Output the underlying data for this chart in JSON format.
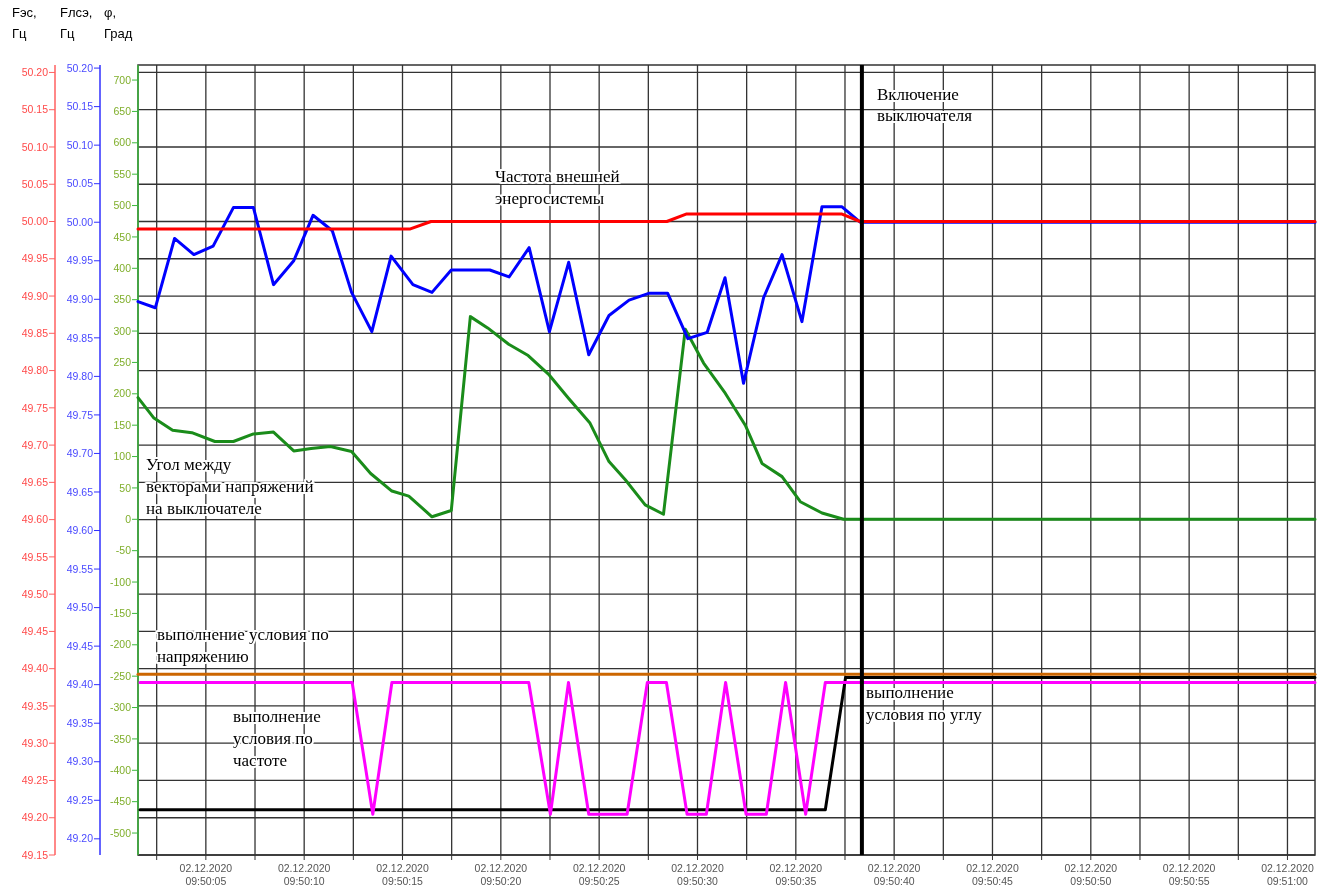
{
  "chart_data": {
    "type": "line",
    "ylabel": "Fэс, Гц",
    "y2label": "Fлсэ, Гц",
    "y3label": "φ, Град",
    "xlim": [
      "2020-12-02T09:50:01.55",
      "2020-12-02T09:51:01.4"
    ],
    "xticks": [
      {
        "value": "2020-12-02T09:50:02.5",
        "label": null
      },
      {
        "value": "2020-12-02T09:50:05",
        "label": "02.12.2020 09:50:05"
      },
      {
        "value": "2020-12-02T09:50:07.5",
        "label": null
      },
      {
        "value": "2020-12-02T09:50:10",
        "label": "02.12.2020 09:50:10"
      },
      {
        "value": "2020-12-02T09:50:12.5",
        "label": null
      },
      {
        "value": "2020-12-02T09:50:15",
        "label": "02.12.2020 09:50:15"
      },
      {
        "value": "2020-12-02T09:50:17.5",
        "label": null
      },
      {
        "value": "2020-12-02T09:50:20",
        "label": "02.12.2020 09:50:20"
      },
      {
        "value": "2020-12-02T09:50:22.5",
        "label": null
      },
      {
        "value": "2020-12-02T09:50:25",
        "label": "02.12.2020 09:50:25"
      },
      {
        "value": "2020-12-02T09:50:27.5",
        "label": null
      },
      {
        "value": "2020-12-02T09:50:30",
        "label": "02.12.2020 09:50:30"
      },
      {
        "value": "2020-12-02T09:50:32.5",
        "label": null
      },
      {
        "value": "2020-12-02T09:50:35",
        "label": "02.12.2020 09:50:35"
      },
      {
        "value": "2020-12-02T09:50:37.5",
        "label": null
      },
      {
        "value": "2020-12-02T09:50:40",
        "label": "02.12.2020 09:50:40"
      },
      {
        "value": "2020-12-02T09:50:42.5",
        "label": null
      },
      {
        "value": "2020-12-02T09:50:45",
        "label": "02.12.2020 09:50:45"
      },
      {
        "value": "2020-12-02T09:50:47.5",
        "label": null
      },
      {
        "value": "2020-12-02T09:50:50",
        "label": "02.12.2020 09:50:50"
      },
      {
        "value": "2020-12-02T09:50:52.5",
        "label": null
      },
      {
        "value": "2020-12-02T09:50:55",
        "label": "02.12.2020 09:50:55"
      },
      {
        "value": "2020-12-02T09:50:57.5",
        "label": null
      },
      {
        "value": "2020-12-02T09:51:00",
        "label": "02.12.2020 09:51:00"
      }
    ],
    "ylim": [
      49.15,
      50.21
    ],
    "yticks": [
      49.15,
      {
        "value": 49.2,
        "label": "49.20"
      },
      49.25,
      {
        "value": 49.3,
        "label": "49.30"
      },
      49.35,
      {
        "value": 49.4,
        "label": "49.40"
      },
      49.45,
      {
        "value": 49.5,
        "label": "49.50"
      },
      49.55,
      {
        "value": 49.6,
        "label": "49.60"
      },
      49.65,
      {
        "value": 49.7,
        "label": "49.70"
      },
      49.75,
      {
        "value": 49.8,
        "label": "49.80"
      },
      49.85,
      {
        "value": 49.9,
        "label": "49.90"
      },
      49.95,
      {
        "value": 50,
        "label": "50.00"
      },
      50.05,
      {
        "value": 50.1,
        "label": "50.10"
      },
      50.15,
      {
        "value": 50.2,
        "label": "50.20"
      }
    ],
    "y2lim": [
      49.179,
      50.204
    ],
    "y2ticks": [
      {
        "value": 49.2,
        "label": "49.20"
      },
      49.25,
      {
        "value": 49.3,
        "label": "49.30"
      },
      49.35,
      {
        "value": 49.4,
        "label": "49.40"
      },
      49.45,
      {
        "value": 49.5,
        "label": "49.50"
      },
      49.55,
      {
        "value": 49.6,
        "label": "49.60"
      },
      49.65,
      {
        "value": 49.7,
        "label": "49.70"
      },
      49.75,
      {
        "value": 49.8,
        "label": "49.80"
      },
      49.85,
      {
        "value": 49.9,
        "label": "49.90"
      },
      49.95,
      {
        "value": 50,
        "label": "50.00"
      },
      50.05,
      {
        "value": 50.1,
        "label": "50.10"
      },
      50.15,
      {
        "value": 50.2,
        "label": "50.20"
      }
    ],
    "y3lim": [
      -535,
      724
    ],
    "y3ticks": [
      -500,
      -450,
      -400,
      -350,
      -300,
      -250,
      -200,
      -150,
      -100,
      -50,
      0,
      50,
      100,
      150,
      200,
      250,
      300,
      350,
      400,
      450,
      500,
      550,
      600,
      650,
      700
    ],
    "grid": true,
    "line_style": "solid",
    "marker": "none",
    "ref_lines": [
      {
        "axis": "x",
        "value": "2020-12-02T09:50:38.36",
        "label": "Включение выключателя",
        "color": "#000000"
      }
    ],
    "series": [
      {
        "name": "выполнение условия по напряжению",
        "color": "#cc6600",
        "axis": "y3",
        "x": [
          "2020-12-02T09:50:01.55",
          "2020-12-02T09:51:01.4"
        ],
        "values": [
          -247,
          -247
        ]
      },
      {
        "name": "выполнение условия по углу",
        "color": "#000000",
        "axis": "y3",
        "x": [
          "2020-12-02T09:50:01.65",
          "2020-12-02T09:50:36.5",
          "2020-12-02T09:50:37.53",
          "2020-12-02T09:51:01.4"
        ],
        "values": [
          -463,
          -463,
          -252,
          -252
        ]
      },
      {
        "name": "выполнение условия по частоте",
        "color": "#ff00ff",
        "axis": "y3",
        "x": [
          "2020-12-02T09:50:01.65",
          "2020-12-02T09:50:12.44",
          "2020-12-02T09:50:13.49",
          "2020-12-02T09:50:14.46",
          "2020-12-02T09:50:21.42",
          "2020-12-02T09:50:22.52",
          "2020-12-02T09:50:23.44",
          "2020-12-02T09:50:24.47",
          "2020-12-02T09:50:26.42",
          "2020-12-02T09:50:27.45",
          "2020-12-02T09:50:28.42",
          "2020-12-02T09:50:29.47",
          "2020-12-02T09:50:30.45",
          "2020-12-02T09:50:31.43",
          "2020-12-02T09:50:32.47",
          "2020-12-02T09:50:33.5",
          "2020-12-02T09:50:34.48",
          "2020-12-02T09:50:35.5",
          "2020-12-02T09:50:36.5",
          "2020-12-02T09:51:01.4"
        ],
        "values": [
          -260,
          -260,
          -470,
          -260,
          -260,
          -470,
          -260,
          -470,
          -470,
          -260,
          -260,
          -470,
          -470,
          -260,
          -470,
          -470,
          -260,
          -470,
          -260,
          -260
        ]
      },
      {
        "name": "Угол между векторами напряжений на выключателе",
        "color": "#1a8c1a",
        "axis": "y3",
        "x": [
          "2020-12-02T09:50:01.55",
          "2020-12-02T09:50:02.34",
          "2020-12-02T09:50:03.31",
          "2020-12-02T09:50:04.29",
          "2020-12-02T09:50:05.46",
          "2020-12-02T09:50:06.4",
          "2020-12-02T09:50:07.42",
          "2020-12-02T09:50:08.44",
          "2020-12-02T09:50:09.47",
          "2020-12-02T09:50:10.35",
          "2020-12-02T09:50:11.33",
          "2020-12-02T09:50:12.41",
          "2020-12-02T09:50:13.38",
          "2020-12-02T09:50:14.46",
          "2020-12-02T09:50:15.32",
          "2020-12-02T09:50:16.5",
          "2020-12-02T09:50:17.48",
          "2020-12-02T09:50:18.45",
          "2020-12-02T09:50:19.33",
          "2020-12-02T09:50:20.4",
          "2020-12-02T09:50:21.39",
          "2020-12-02T09:50:22.46",
          "2020-12-02T09:50:23.44",
          "2020-12-02T09:50:24.52",
          "2020-12-02T09:50:25.5",
          "2020-12-02T09:50:26.33",
          "2020-12-02T09:50:27.34",
          "2020-12-02T09:50:28.27",
          "2020-12-02T09:50:29.38",
          "2020-12-02T09:50:30.31",
          "2020-12-02T09:50:31.41",
          "2020-12-02T09:50:32.43",
          "2020-12-02T09:50:33.28",
          "2020-12-02T09:50:34.3",
          "2020-12-02T09:50:35.23",
          "2020-12-02T09:50:36.33",
          "2020-12-02T09:50:37.43",
          "2020-12-02T09:51:01.4"
        ],
        "values": [
          194,
          162,
          142,
          138,
          124,
          124,
          136,
          139,
          109,
          113,
          116,
          108,
          73,
          45,
          37,
          4,
          14,
          323,
          305,
          279,
          261,
          230,
          193,
          154,
          92,
          63,
          23,
          8,
          303,
          249,
          201,
          150,
          89,
          68,
          28,
          10,
          0,
          0
        ]
      },
      {
        "color": "#0000ff",
        "axis": "y2",
        "x": [
          "2020-12-02T09:50:01.55",
          "2020-12-02T09:50:02.43",
          "2020-12-02T09:50:03.41",
          "2020-12-02T09:50:04.39",
          "2020-12-02T09:50:05.37",
          "2020-12-02T09:50:06.4",
          "2020-12-02T09:50:07.42",
          "2020-12-02T09:50:08.44",
          "2020-12-02T09:50:09.47",
          "2020-12-02T09:50:10.45",
          "2020-12-02T09:50:11.43",
          "2020-12-02T09:50:12.41",
          "2020-12-02T09:50:13.44",
          "2020-12-02T09:50:14.42",
          "2020-12-02T09:50:15.53",
          "2020-12-02T09:50:16.5",
          "2020-12-02T09:50:17.48",
          "2020-12-02T09:50:19.44",
          "2020-12-02T09:50:20.42",
          "2020-12-02T09:50:21.44",
          "2020-12-02T09:50:22.47",
          "2020-12-02T09:50:23.45",
          "2020-12-02T09:50:24.47",
          "2020-12-02T09:50:25.5",
          "2020-12-02T09:50:26.52",
          "2020-12-02T09:50:27.56",
          "2020-12-02T09:50:28.48",
          "2020-12-02T09:50:29.51",
          "2020-12-02T09:50:30.49",
          "2020-12-02T09:50:31.4",
          "2020-12-02T09:50:32.34",
          "2020-12-02T09:50:33.36",
          "2020-12-02T09:50:34.3",
          "2020-12-02T09:50:35.31",
          "2020-12-02T09:50:36.33",
          "2020-12-02T09:50:37.35",
          "2020-12-02T09:50:38.27",
          "2020-12-02T09:51:01.4"
        ],
        "values": [
          49.897,
          49.889,
          49.979,
          49.958,
          49.969,
          50.019,
          50.019,
          49.919,
          49.95,
          50.009,
          49.989,
          49.909,
          49.858,
          49.956,
          49.919,
          49.909,
          49.938,
          49.938,
          49.929,
          49.967,
          49.858,
          49.948,
          49.828,
          49.879,
          49.899,
          49.908,
          49.908,
          49.849,
          49.857,
          49.928,
          49.791,
          49.902,
          49.958,
          49.871,
          50.02,
          50.02,
          50,
          50
        ]
      },
      {
        "name": "Частота внешней энергосистемы",
        "color": "#ff0000",
        "axis": "y",
        "x": [
          "2020-12-02T09:50:01.55",
          "2020-12-02T09:50:15.4",
          "2020-12-02T09:50:16.45",
          "2020-12-02T09:50:28.44",
          "2020-12-02T09:50:29.42",
          "2020-12-02T09:50:37.35",
          "2020-12-02T09:50:38.27",
          "2020-12-02T09:51:01.4"
        ],
        "values": [
          49.99,
          49.99,
          50,
          50,
          50.01,
          50.01,
          50,
          50
        ]
      }
    ]
  }
}
